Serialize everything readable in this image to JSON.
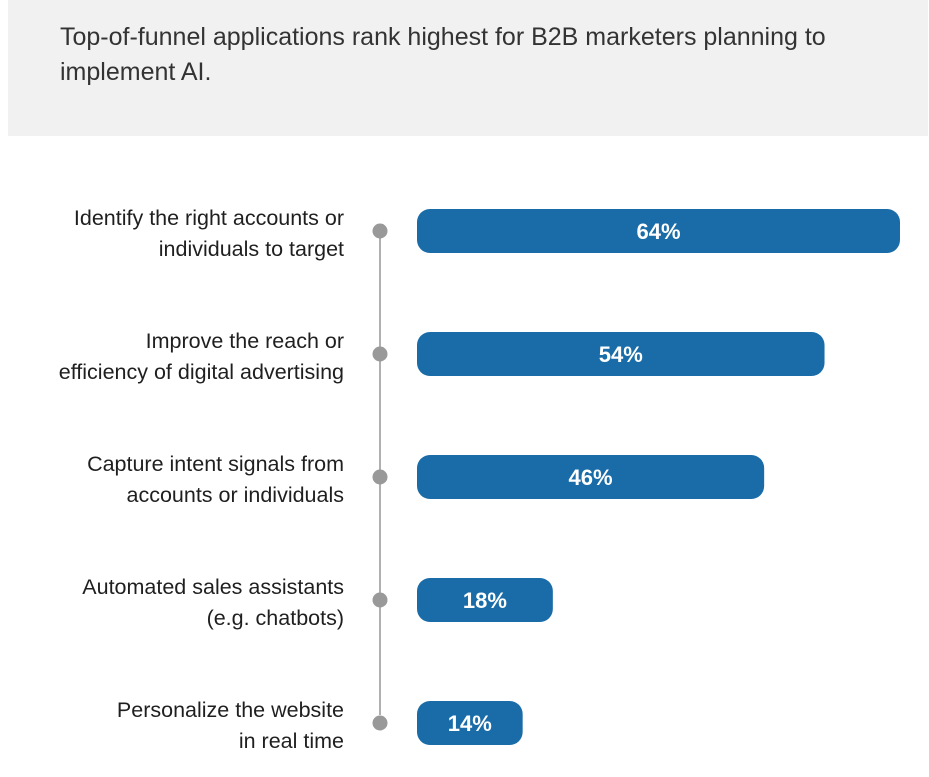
{
  "chart_data": {
    "type": "bar",
    "orientation": "horizontal",
    "title": "Top-of-funnel applications rank highest for B2B marketers planning to implement AI.",
    "categories": [
      [
        "Identify the right accounts or",
        "individuals to target"
      ],
      [
        "Improve the reach or",
        "efficiency of digital advertising"
      ],
      [
        "Capture intent signals from",
        "accounts or individuals"
      ],
      [
        "Automated sales assistants",
        "(e.g. chatbots)"
      ],
      [
        "Personalize the website",
        "in real time"
      ]
    ],
    "values": [
      64,
      54,
      46,
      18,
      14
    ],
    "value_labels": [
      "64%",
      "54%",
      "46%",
      "18%",
      "14%"
    ],
    "unit": "%",
    "xlim": [
      0,
      64
    ],
    "grid": false,
    "legend": "none",
    "colors": {
      "bar": "#1a6ca8",
      "axis_line": "#b0b0b0",
      "axis_dot": "#999999",
      "header_bg": "#f1f1f1"
    }
  }
}
